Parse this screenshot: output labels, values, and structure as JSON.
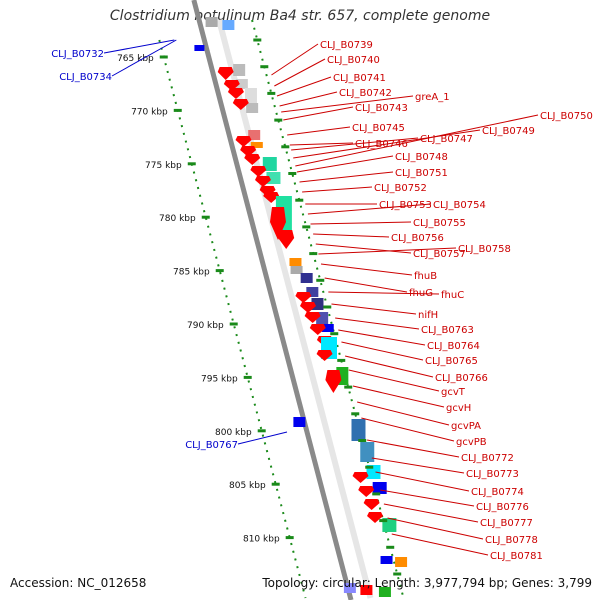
{
  "title": "Clostridium botulinum Ba4 str. 657, complete genome",
  "accession": "Accession: NC_012658",
  "summary": "Topology: circular; Length: 3,977,794 bp; Genes: 3,799",
  "ticks": [
    "765 kbp",
    "770 kbp",
    "775 kbp",
    "780 kbp",
    "785 kbp",
    "790 kbp",
    "795 kbp",
    "800 kbp",
    "805 kbp",
    "810 kbp"
  ],
  "left_labels": [
    "CLJ_B0732",
    "CLJ_B0734",
    "CLJ_B0767"
  ],
  "right_labels": [
    "CLJ_B0739",
    "CLJ_B0740",
    "CLJ_B0741",
    "CLJ_B0742",
    "greA_1",
    "CLJ_B0743",
    "CLJ_B0745",
    "CLJ_B0746",
    "CLJ_B0747",
    "CLJ_B0749",
    "CLJ_B0750",
    "CLJ_B0748",
    "CLJ_B0751",
    "CLJ_B0752",
    "CLJ_B0753",
    "CLJ_B0754",
    "CLJ_B0755",
    "CLJ_B0756",
    "CLJ_B0757",
    "CLJ_B0758",
    "fhuB",
    "fhuG",
    "fhuC",
    "nifH",
    "CLJ_B0763",
    "CLJ_B0764",
    "CLJ_B0765",
    "CLJ_B0766",
    "gcvT",
    "gcvH",
    "gcvPA",
    "gcvPB",
    "CLJ_B0772",
    "CLJ_B0773",
    "CLJ_B0774",
    "CLJ_B0776",
    "CLJ_B0777",
    "CLJ_B0778",
    "CLJ_B0781"
  ],
  "colors": {
    "backbone": "#8a8a8a",
    "tick": "#1a8a1a",
    "gene_red": "#ff0000",
    "gene_blue": "#0000ee",
    "label_red": "#cc0000",
    "label_blue": "#0000cc"
  }
}
